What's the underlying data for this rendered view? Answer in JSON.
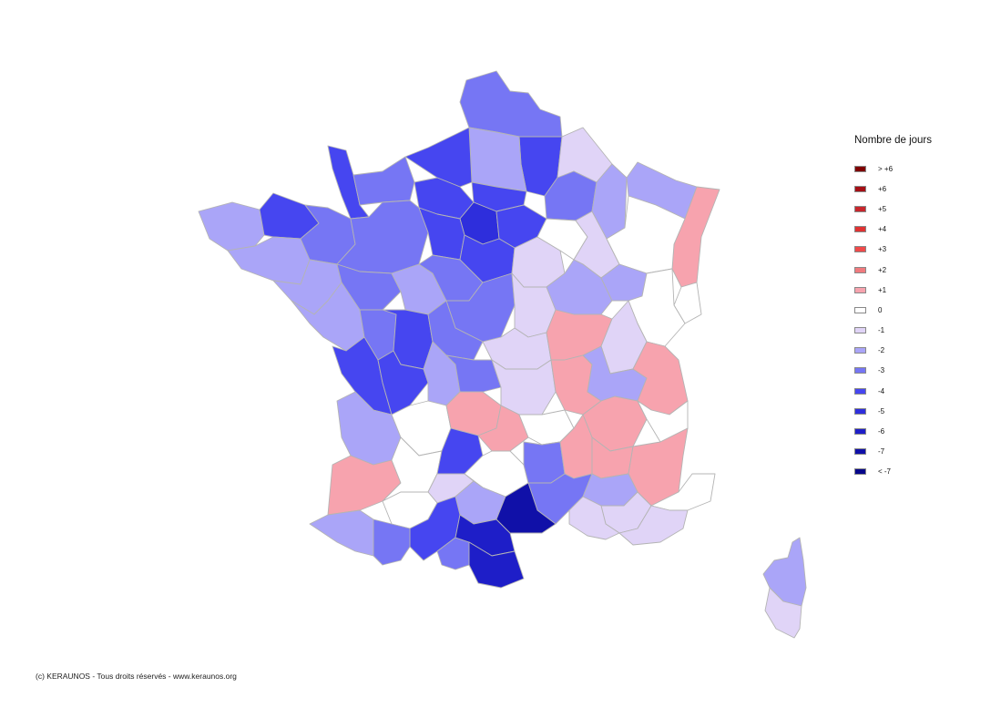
{
  "legend": {
    "title": "Nombre de jours",
    "items": [
      {
        "label": "> +6",
        "color": "#7f0000"
      },
      {
        "label": "+6",
        "color": "#a50f15"
      },
      {
        "label": "+5",
        "color": "#c8262c"
      },
      {
        "label": "+4",
        "color": "#e03232"
      },
      {
        "label": "+3",
        "color": "#f04a4a"
      },
      {
        "label": "+2",
        "color": "#f07a7e"
      },
      {
        "label": "+1",
        "color": "#f7a3ae"
      },
      {
        "label": "0",
        "color": "#ffffff"
      },
      {
        "label": "-1",
        "color": "#e0d4f7"
      },
      {
        "label": "-2",
        "color": "#aaa5f8"
      },
      {
        "label": "-3",
        "color": "#7676f4"
      },
      {
        "label": "-4",
        "color": "#4646f0"
      },
      {
        "label": "-5",
        "color": "#2e2edc"
      },
      {
        "label": "-6",
        "color": "#1e1ec8"
      },
      {
        "label": "-7",
        "color": "#1010a8"
      },
      {
        "label": "< -7",
        "color": "#06068a"
      }
    ]
  },
  "copyright": "(c) KERAUNOS - Tous droits réservés - www.keraunos.org",
  "regions": [
    {
      "name": "nord",
      "value": "-3"
    },
    {
      "name": "aisne",
      "value": "-4"
    },
    {
      "name": "ardennes",
      "value": "-1"
    },
    {
      "name": "marne",
      "value": "-3"
    },
    {
      "name": "meuse",
      "value": "-2"
    },
    {
      "name": "moselle",
      "value": "-2"
    },
    {
      "name": "bas-rhin",
      "value": "+1"
    },
    {
      "name": "haut-rhin",
      "value": "0"
    },
    {
      "name": "somme",
      "value": "-2"
    },
    {
      "name": "seine-maritime",
      "value": "-4"
    },
    {
      "name": "oise",
      "value": "-4"
    },
    {
      "name": "manche",
      "value": "-4"
    },
    {
      "name": "calvados",
      "value": "-3"
    },
    {
      "name": "eure",
      "value": "-4"
    },
    {
      "name": "ile-de-france",
      "value": "-5"
    },
    {
      "name": "seine-et-marne",
      "value": "-4"
    },
    {
      "name": "finistere",
      "value": "-2"
    },
    {
      "name": "cotes-d-armor",
      "value": "-4"
    },
    {
      "name": "morbihan",
      "value": "-2"
    },
    {
      "name": "ille-et-vilaine",
      "value": "-3"
    },
    {
      "name": "mayenne-sarthe",
      "value": "-3"
    },
    {
      "name": "eure-et-loir",
      "value": "-4"
    },
    {
      "name": "loiret",
      "value": "-4"
    },
    {
      "name": "yonne",
      "value": "-1"
    },
    {
      "name": "aube",
      "value": "0"
    },
    {
      "name": "haute-marne",
      "value": "-1"
    },
    {
      "name": "vosges",
      "value": "0"
    },
    {
      "name": "loire-atlantique",
      "value": "-2"
    },
    {
      "name": "maine-et-loire",
      "value": "-3"
    },
    {
      "name": "indre-et-loire",
      "value": "-2"
    },
    {
      "name": "loir-et-cher",
      "value": "-3"
    },
    {
      "name": "cher",
      "value": "-3"
    },
    {
      "name": "nievre",
      "value": "-1"
    },
    {
      "name": "cote-d-or",
      "value": "-2"
    },
    {
      "name": "haute-saone",
      "value": "-2"
    },
    {
      "name": "doubs",
      "value": "0"
    },
    {
      "name": "vendee",
      "value": "-2"
    },
    {
      "name": "deux-sevres",
      "value": "-3"
    },
    {
      "name": "vienne",
      "value": "-4"
    },
    {
      "name": "indre",
      "value": "-3"
    },
    {
      "name": "allier",
      "value": "-1"
    },
    {
      "name": "saone-et-loire",
      "value": "+1"
    },
    {
      "name": "jura",
      "value": "-1"
    },
    {
      "name": "charente-maritime",
      "value": "-4"
    },
    {
      "name": "charente",
      "value": "-4"
    },
    {
      "name": "haute-vienne",
      "value": "-2"
    },
    {
      "name": "creuse",
      "value": "-3"
    },
    {
      "name": "puy-de-dome",
      "value": "-1"
    },
    {
      "name": "rhone",
      "value": "+1"
    },
    {
      "name": "ain",
      "value": "-2"
    },
    {
      "name": "haute-savoie",
      "value": "+1"
    },
    {
      "name": "gironde",
      "value": "-2"
    },
    {
      "name": "dordogne",
      "value": "0"
    },
    {
      "name": "correze",
      "value": "+1"
    },
    {
      "name": "cantal",
      "value": "+1"
    },
    {
      "name": "haute-loire",
      "value": "0"
    },
    {
      "name": "isere",
      "value": "+1"
    },
    {
      "name": "savoie",
      "value": "0"
    },
    {
      "name": "landes",
      "value": "+1"
    },
    {
      "name": "lot-et-garonne",
      "value": "0"
    },
    {
      "name": "lot",
      "value": "-4"
    },
    {
      "name": "aveyron",
      "value": "0"
    },
    {
      "name": "lozere",
      "value": "-3"
    },
    {
      "name": "ardeche",
      "value": "+1"
    },
    {
      "name": "drome",
      "value": "+1"
    },
    {
      "name": "hautes-alpes",
      "value": "+1"
    },
    {
      "name": "tarn-et-garonne",
      "value": "-1"
    },
    {
      "name": "tarn",
      "value": "-2"
    },
    {
      "name": "gard",
      "value": "-3"
    },
    {
      "name": "vaucluse",
      "value": "-2"
    },
    {
      "name": "alpes-de-haute-provence",
      "value": "-1"
    },
    {
      "name": "alpes-maritimes",
      "value": "0"
    },
    {
      "name": "pyrenees-atlantiques",
      "value": "-2"
    },
    {
      "name": "gers",
      "value": "0"
    },
    {
      "name": "haute-garonne",
      "value": "-4"
    },
    {
      "name": "ariege",
      "value": "-3"
    },
    {
      "name": "hautes-pyrenees",
      "value": "-3"
    },
    {
      "name": "aude",
      "value": "-6"
    },
    {
      "name": "herault",
      "value": "-7"
    },
    {
      "name": "pyrenees-orientales",
      "value": "-6"
    },
    {
      "name": "bouches-du-rhone",
      "value": "-1"
    },
    {
      "name": "var",
      "value": "-1"
    },
    {
      "name": "haute-corse",
      "value": "-2"
    },
    {
      "name": "corse-du-sud",
      "value": "-1"
    }
  ]
}
